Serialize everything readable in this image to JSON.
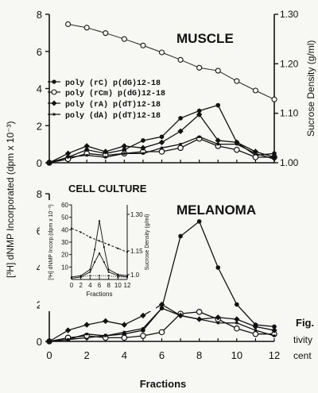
{
  "chart_data": [
    {
      "id": "muscle",
      "type": "line",
      "title": "MUSCLE",
      "xlim": [
        0,
        12
      ],
      "ylim": [
        0,
        8
      ],
      "yticks": [
        0,
        2,
        4,
        6,
        8
      ],
      "ylim_right": [
        1.0,
        1.3
      ],
      "yticks_right": [
        "1.00",
        "1.10",
        "1.20",
        "1.30"
      ],
      "ylabel_right": "Sucrose Density (g/ml)",
      "legend_placement": "center-left",
      "legend": [
        "poly (rC) p(dG)12-18",
        "poly (rCm) p(dG)12-18",
        "poly (rA) p(dT)12-18",
        "poly (dA) p(dT)12-18"
      ],
      "density": {
        "x": [
          1,
          2,
          3,
          4,
          5,
          6,
          7,
          8,
          9,
          10,
          11,
          12
        ],
        "y": [
          1.28,
          1.273,
          1.262,
          1.25,
          1.237,
          1.223,
          1.208,
          1.192,
          1.186,
          1.165,
          1.146,
          1.128
        ]
      },
      "series": [
        {
          "marker": "filled-circle",
          "x": [
            0,
            1,
            2,
            3,
            4,
            5,
            6,
            7,
            8,
            9,
            10,
            11,
            12
          ],
          "y": [
            0,
            0.3,
            0.7,
            0.5,
            0.7,
            1.2,
            1.4,
            2.4,
            2.8,
            3.1,
            1.1,
            0.4,
            0.5
          ]
        },
        {
          "marker": "open-circle",
          "x": [
            0,
            1,
            2,
            3,
            4,
            5,
            6,
            7,
            8,
            9,
            10,
            11,
            12
          ],
          "y": [
            0,
            0.2,
            0.5,
            0.4,
            0.5,
            0.6,
            0.6,
            0.8,
            1.3,
            0.9,
            0.7,
            0.3,
            0.3
          ]
        },
        {
          "marker": "filled-diamond",
          "x": [
            0,
            1,
            2,
            3,
            4,
            5,
            6,
            7,
            8,
            9,
            10,
            11,
            12
          ],
          "y": [
            0,
            0.5,
            0.9,
            0.6,
            0.9,
            0.8,
            1.1,
            1.7,
            2.6,
            1.2,
            1.1,
            0.6,
            0.3
          ]
        },
        {
          "marker": "small-square",
          "x": [
            0,
            1,
            2,
            3,
            4,
            5,
            6,
            7,
            8,
            9,
            10,
            11,
            12
          ],
          "y": [
            0,
            0.3,
            0.4,
            0.3,
            0.5,
            0.5,
            0.8,
            1.0,
            1.4,
            1.0,
            1.0,
            0.5,
            0.2
          ]
        }
      ]
    },
    {
      "id": "melanoma",
      "type": "line",
      "title": "MELANOMA",
      "xlabel": "Fractions",
      "xlim": [
        0,
        12
      ],
      "xticks": [
        0,
        2,
        4,
        6,
        8,
        10,
        12
      ],
      "ylim": [
        0,
        8
      ],
      "yticks": [
        0,
        2,
        4,
        6,
        8
      ],
      "series": [
        {
          "marker": "filled-circle",
          "x": [
            0,
            1,
            2,
            3,
            4,
            5,
            6,
            7,
            8,
            9,
            10,
            11,
            12
          ],
          "y": [
            0,
            0.1,
            0.2,
            0.3,
            0.4,
            0.6,
            1.8,
            5.7,
            6.5,
            4.0,
            2.0,
            0.9,
            0.8
          ]
        },
        {
          "marker": "open-circle",
          "x": [
            0,
            1,
            2,
            3,
            4,
            5,
            6,
            7,
            8,
            9,
            10,
            11,
            12
          ],
          "y": [
            0,
            0.2,
            0.3,
            0.2,
            0.2,
            0.3,
            0.5,
            1.5,
            1.6,
            1.2,
            0.7,
            0.4,
            0.4
          ]
        },
        {
          "marker": "filled-diamond",
          "x": [
            0,
            1,
            2,
            3,
            4,
            5,
            6,
            7,
            8,
            9,
            10,
            11,
            12
          ],
          "y": [
            0,
            0.6,
            0.9,
            1.1,
            0.9,
            1.4,
            2.0,
            1.4,
            1.2,
            1.3,
            1.2,
            0.8,
            0.6
          ]
        },
        {
          "marker": "small-square",
          "x": [
            0,
            1,
            2,
            3,
            4,
            5,
            6,
            7,
            8,
            9,
            10,
            11,
            12
          ],
          "y": [
            0,
            0.1,
            0.4,
            0.3,
            0.5,
            0.7,
            1.8,
            1.4,
            1.2,
            1.0,
            1.0,
            0.6,
            0.3
          ]
        }
      ]
    },
    {
      "id": "cell-culture",
      "type": "line",
      "title": "CELL CULTURE",
      "xlabel": "Fractions",
      "ylabel": "[³H] dNMP Incorp.(dpm x 10⁻³)",
      "ylabel_right": "Sucrose Density (g/ml)",
      "xlim": [
        0,
        12
      ],
      "xticks": [
        0,
        2,
        4,
        6,
        8,
        10,
        12
      ],
      "ylim": [
        0,
        60
      ],
      "yticks": [
        10,
        20,
        30,
        40,
        50,
        60
      ],
      "yticks_right": [
        "1.0",
        "1.15",
        "1.30"
      ],
      "series": [
        {
          "style": "dashed-density",
          "x": [
            0,
            2,
            4,
            6,
            8,
            10,
            12
          ],
          "y": [
            41,
            38,
            34,
            31,
            28,
            25,
            22
          ]
        },
        {
          "style": "peak",
          "x": [
            0,
            2,
            4,
            5,
            6,
            7,
            8,
            10,
            12
          ],
          "y": [
            2,
            3,
            8,
            24,
            47,
            26,
            8,
            4,
            3
          ]
        },
        {
          "style": "low-peak",
          "x": [
            0,
            2,
            4,
            5,
            6,
            7,
            8,
            10,
            12
          ],
          "y": [
            1,
            2,
            6,
            14,
            21,
            14,
            6,
            3,
            2
          ]
        },
        {
          "style": "flat",
          "x": [
            0,
            2,
            4,
            6,
            8,
            10,
            12
          ],
          "y": [
            1,
            2,
            3,
            3,
            3,
            2,
            2
          ]
        }
      ]
    }
  ],
  "axes_text": {
    "shared_ylabel": "[³H] dNMP Incorporated (dpm x 10⁻³)",
    "x_title": "Fractions",
    "caption_lines": [
      "Fig.",
      "tivity",
      "cent"
    ]
  }
}
